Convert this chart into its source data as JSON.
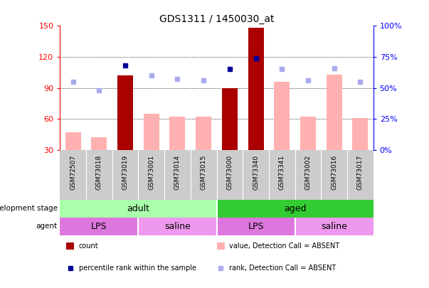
{
  "title": "GDS1311 / 1450030_at",
  "samples": [
    "GSM72507",
    "GSM73018",
    "GSM73019",
    "GSM73001",
    "GSM73014",
    "GSM73015",
    "GSM73000",
    "GSM73340",
    "GSM73341",
    "GSM73002",
    "GSM73016",
    "GSM73017"
  ],
  "count_values": [
    null,
    null,
    102,
    null,
    null,
    null,
    90,
    148,
    null,
    null,
    null,
    null
  ],
  "count_absent": [
    47,
    42,
    null,
    65,
    62,
    62,
    null,
    null,
    96,
    62,
    103,
    61
  ],
  "rank_present": [
    null,
    null,
    68,
    null,
    null,
    null,
    65,
    74,
    null,
    null,
    null,
    null
  ],
  "rank_absent": [
    55,
    48,
    null,
    60,
    57,
    56,
    null,
    null,
    65,
    56,
    66,
    55
  ],
  "ylim_left": [
    30,
    150
  ],
  "ylim_right": [
    0,
    100
  ],
  "yticks_left": [
    30,
    60,
    90,
    120,
    150
  ],
  "yticks_right": [
    0,
    25,
    50,
    75,
    100
  ],
  "color_count_bar": "#aa0000",
  "color_absent_bar": "#ffb0b0",
  "color_rank_present": "#000099",
  "color_rank_absent": "#aaaaee",
  "color_adult": "#aaffaa",
  "color_aged": "#33cc33",
  "color_lps": "#dd77dd",
  "color_saline": "#ee99ee",
  "legend_items": [
    {
      "label": "count",
      "color": "#aa0000",
      "type": "rect"
    },
    {
      "label": "percentile rank within the sample",
      "color": "#000099",
      "type": "square"
    },
    {
      "label": "value, Detection Call = ABSENT",
      "color": "#ffb0b0",
      "type": "rect"
    },
    {
      "label": "rank, Detection Call = ABSENT",
      "color": "#aaaaee",
      "type": "square"
    }
  ]
}
